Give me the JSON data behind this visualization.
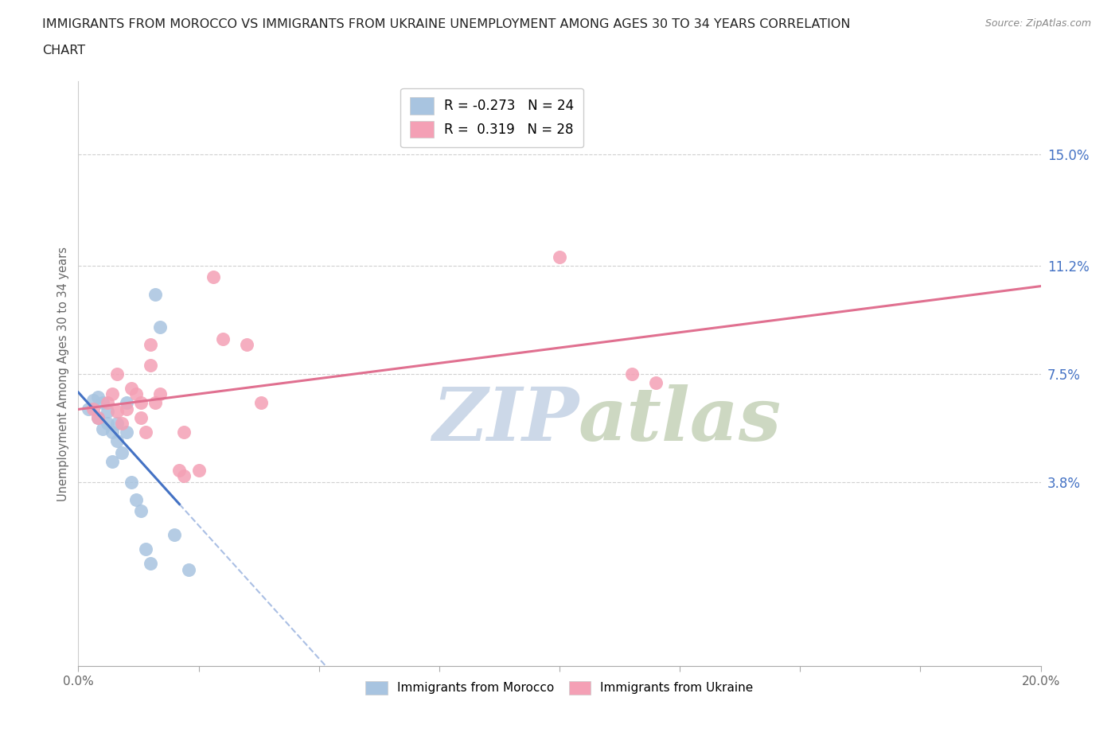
{
  "title_line1": "IMMIGRANTS FROM MOROCCO VS IMMIGRANTS FROM UKRAINE UNEMPLOYMENT AMONG AGES 30 TO 34 YEARS CORRELATION",
  "title_line2": "CHART",
  "source": "Source: ZipAtlas.com",
  "ylabel": "Unemployment Among Ages 30 to 34 years",
  "xlim": [
    0.0,
    0.2
  ],
  "ylim": [
    -0.025,
    0.175
  ],
  "yticks": [
    0.038,
    0.075,
    0.112,
    0.15
  ],
  "ytick_labels": [
    "3.8%",
    "7.5%",
    "11.2%",
    "15.0%"
  ],
  "xticks": [
    0.0,
    0.025,
    0.05,
    0.075,
    0.1,
    0.125,
    0.15,
    0.175,
    0.2
  ],
  "xtick_labels_show": [
    "0.0%",
    "",
    "",
    "",
    "",
    "",
    "",
    "",
    "20.0%"
  ],
  "morocco_R": -0.273,
  "morocco_N": 24,
  "ukraine_R": 0.319,
  "ukraine_N": 28,
  "morocco_color": "#a8c4e0",
  "ukraine_color": "#f4a0b5",
  "morocco_line_color": "#4472c4",
  "ukraine_line_color": "#e07090",
  "background_color": "#ffffff",
  "grid_color": "#d0d0d0",
  "watermark_color": "#ccd8e8",
  "legend_label_morocco": "Immigrants from Morocco",
  "legend_label_ukraine": "Immigrants from Ukraine",
  "morocco_x": [
    0.002,
    0.003,
    0.004,
    0.004,
    0.005,
    0.005,
    0.006,
    0.006,
    0.007,
    0.007,
    0.008,
    0.008,
    0.009,
    0.01,
    0.01,
    0.011,
    0.012,
    0.013,
    0.014,
    0.015,
    0.016,
    0.017,
    0.02,
    0.023
  ],
  "morocco_y": [
    0.063,
    0.066,
    0.06,
    0.067,
    0.056,
    0.065,
    0.058,
    0.062,
    0.055,
    0.045,
    0.052,
    0.058,
    0.048,
    0.055,
    0.065,
    0.038,
    0.032,
    0.028,
    0.015,
    0.01,
    0.102,
    0.091,
    0.02,
    0.008
  ],
  "ukraine_x": [
    0.003,
    0.004,
    0.006,
    0.007,
    0.008,
    0.008,
    0.009,
    0.01,
    0.011,
    0.012,
    0.013,
    0.013,
    0.014,
    0.015,
    0.015,
    0.016,
    0.017,
    0.021,
    0.022,
    0.022,
    0.025,
    0.028,
    0.03,
    0.035,
    0.038,
    0.1,
    0.115,
    0.12
  ],
  "ukraine_y": [
    0.063,
    0.06,
    0.065,
    0.068,
    0.062,
    0.075,
    0.058,
    0.063,
    0.07,
    0.068,
    0.06,
    0.065,
    0.055,
    0.078,
    0.085,
    0.065,
    0.068,
    0.042,
    0.055,
    0.04,
    0.042,
    0.108,
    0.087,
    0.085,
    0.065,
    0.115,
    0.075,
    0.072
  ],
  "morocco_trend_solid_end": 0.021,
  "morocco_trend_dashed_end": 0.2,
  "ukraine_trend_start": 0.0,
  "ukraine_trend_end": 0.2
}
